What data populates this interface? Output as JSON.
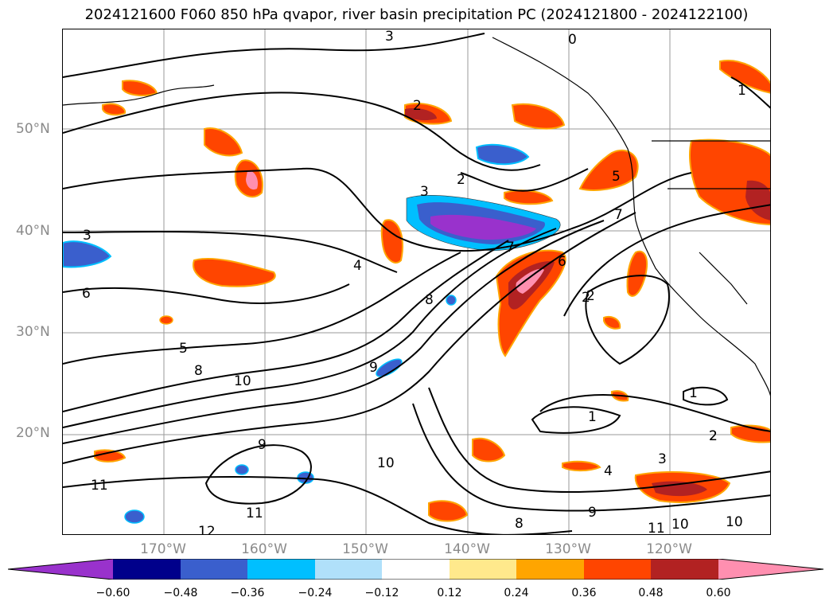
{
  "title": "2024121600 F060 850 hPa qvapor, river basin precipitation PC (2024121800 - 2024122100)",
  "lat_labels": [
    "50°N",
    "40°N",
    "30°N",
    "20°N"
  ],
  "lon_labels": [
    "170°W",
    "160°W",
    "150°W",
    "140°W",
    "130°W",
    "120°W"
  ],
  "contour_labels": [
    "3",
    "0",
    "2",
    "1",
    "2",
    "2",
    "3",
    "3",
    "4",
    "5",
    "6",
    "7",
    "7",
    "8",
    "8",
    "9",
    "9",
    "10",
    "10",
    "11",
    "11",
    "12",
    "2",
    "2",
    "1",
    "1",
    "2",
    "3",
    "4",
    "9",
    "8",
    "10",
    "10",
    "11",
    "6",
    "5"
  ],
  "colorbar": {
    "ticks": [
      "−0.60",
      "−0.48",
      "−0.36",
      "−0.24",
      "−0.12",
      "0.12",
      "0.24",
      "0.36",
      "0.48",
      "0.60"
    ],
    "colors": [
      "#9932cc",
      "#00008b",
      "#3a5fcd",
      "#00bfff",
      "#b0e0fa",
      "#ffffff",
      "#ffe98c",
      "#ffa500",
      "#ff4500",
      "#b22222",
      "#ff8fb0"
    ]
  }
}
